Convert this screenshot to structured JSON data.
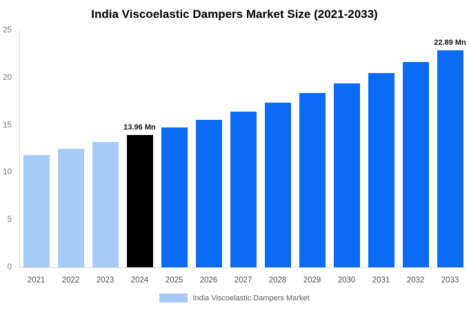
{
  "title": "India Viscoelastic Dampers Market Size (2021-2033)",
  "legend": {
    "label": "India Viscoelastic Dampers Market",
    "swatch_color": "#a5cbf6"
  },
  "colors": {
    "historical_bar": "#a5cbf6",
    "base_year_bar": "#000000",
    "forecast_bar": "#0a6cf5",
    "axis_line": "#d9d9d9",
    "ytick_text": "#757575",
    "xtick_text": "#4d4d4d",
    "annotation_text": "#111111",
    "title_text": "#000000",
    "background": "#ffffff"
  },
  "chart_data": {
    "type": "bar",
    "title": "India Viscoelastic Dampers Market Size (2021-2033)",
    "unit": "Mn",
    "categories": [
      "2021",
      "2022",
      "2023",
      "2024",
      "2025",
      "2026",
      "2027",
      "2028",
      "2029",
      "2030",
      "2031",
      "2032",
      "2033"
    ],
    "values": [
      11.82,
      12.49,
      13.2,
      13.96,
      14.75,
      15.58,
      16.46,
      17.39,
      18.37,
      19.41,
      20.51,
      21.67,
      22.89
    ],
    "bar_colors": [
      "#a5cbf6",
      "#a5cbf6",
      "#a5cbf6",
      "#000000",
      "#0a6cf5",
      "#0a6cf5",
      "#0a6cf5",
      "#0a6cf5",
      "#0a6cf5",
      "#0a6cf5",
      "#0a6cf5",
      "#0a6cf5",
      "#0a6cf5"
    ],
    "ylim": [
      0,
      25
    ],
    "yticks": [
      0,
      5,
      10,
      15,
      20,
      25
    ],
    "grid": false,
    "xlabel": "",
    "ylabel": "",
    "legend_position": "bottom",
    "annotations": [
      {
        "category": "2024",
        "text": "13.96 Mn"
      },
      {
        "category": "2033",
        "text": "22.89 Mn"
      }
    ]
  }
}
